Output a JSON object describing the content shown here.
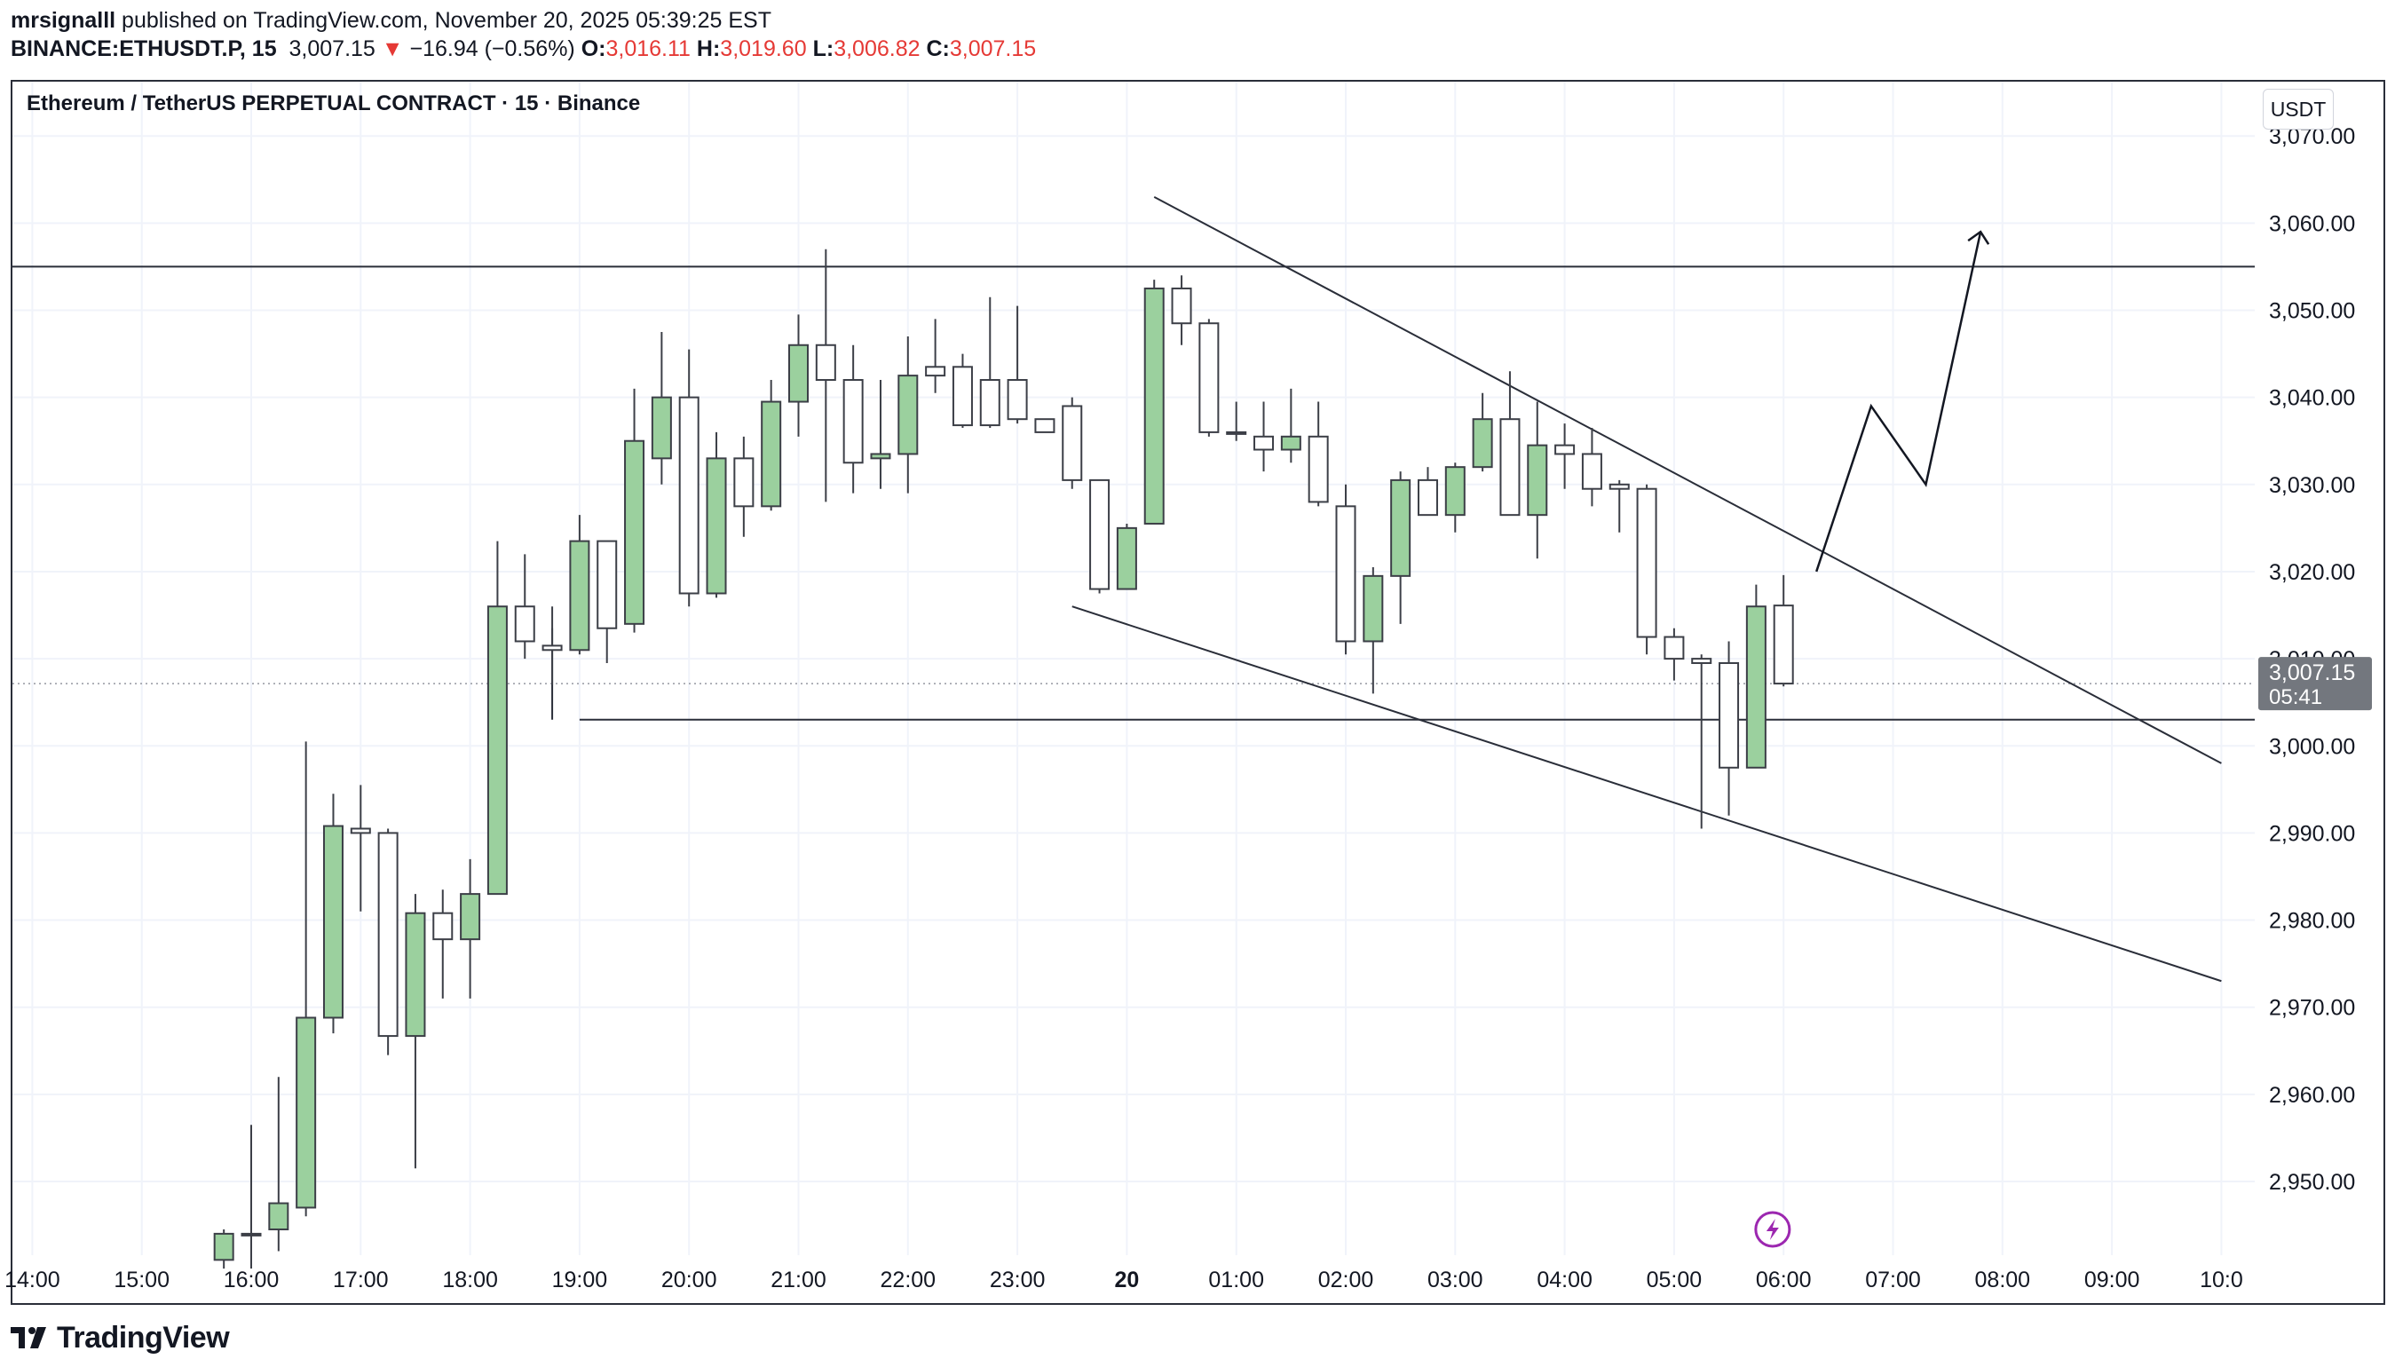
{
  "header": {
    "author": "mrsignalll",
    "published_text": " published on TradingView.com, November 20, 2025 05:39:25 EST",
    "symbol": "BINANCE:ETHUSDT.P, 15",
    "last": "3,007.15",
    "change_arrow": "▼",
    "change": "−16.94 (−0.56%)",
    "o_label": "O:",
    "o_value": "3,016.11",
    "h_label": "H:",
    "h_value": "3,019.60",
    "l_label": "L:",
    "l_value": "3,006.82",
    "c_label": "C:",
    "c_value": "3,007.15"
  },
  "chart_title": "Ethereum / TetherUS PERPETUAL CONTRACT · 15 · Binance",
  "currency_button": "USDT",
  "price_label": {
    "price": "3,007.15",
    "countdown": "05:41"
  },
  "footer": {
    "brand": "TradingView"
  },
  "colors": {
    "up_fill": "#9bd09e",
    "down_fill": "#ffffff",
    "candle_stroke": "#3c3f47",
    "label_bg": "#73777e"
  },
  "chart_data": {
    "type": "candlestick",
    "title": "Ethereum / TetherUS PERPETUAL CONTRACT · 15 · Binance",
    "xlabel": "",
    "ylabel": "USDT",
    "ylim": [
      2942,
      3074
    ],
    "y_ticks": [
      2950,
      2960,
      2970,
      2980,
      2990,
      3000,
      3010,
      3020,
      3030,
      3040,
      3050,
      3060,
      3070
    ],
    "y_tick_labels": [
      "2,950.00",
      "2,960.00",
      "2,970.00",
      "2,980.00",
      "2,990.00",
      "3,000.00",
      "3,010.00",
      "3,020.00",
      "3,030.00",
      "3,040.00",
      "3,050.00",
      "3,060.00",
      "3,070.00"
    ],
    "x_ticks": [
      {
        "t": -2.0,
        "label": "14:00"
      },
      {
        "t": -1.0,
        "label": "15:00"
      },
      {
        "t": 0.0,
        "label": "16:00"
      },
      {
        "t": 1.0,
        "label": "17:00"
      },
      {
        "t": 2.0,
        "label": "18:00"
      },
      {
        "t": 3.0,
        "label": "19:00"
      },
      {
        "t": 4.0,
        "label": "20:00"
      },
      {
        "t": 5.0,
        "label": "21:00"
      },
      {
        "t": 6.0,
        "label": "22:00"
      },
      {
        "t": 7.0,
        "label": "23:00"
      },
      {
        "t": 8.0,
        "label": "20",
        "bold": true
      },
      {
        "t": 9.0,
        "label": "01:00"
      },
      {
        "t": 10.0,
        "label": "02:00"
      },
      {
        "t": 11.0,
        "label": "03:00"
      },
      {
        "t": 12.0,
        "label": "04:00"
      },
      {
        "t": 13.0,
        "label": "05:00"
      },
      {
        "t": 14.0,
        "label": "06:00"
      },
      {
        "t": 15.0,
        "label": "07:00"
      },
      {
        "t": 16.0,
        "label": "08:00"
      },
      {
        "t": 17.0,
        "label": "09:00"
      },
      {
        "t": 18.0,
        "label": "10:0"
      }
    ],
    "candle_interval_hours": 0.25,
    "candles": [
      {
        "t": -0.25,
        "o": 2941.0,
        "h": 2944.5,
        "l": 2940.0,
        "c": 2944.0
      },
      {
        "t": 0.0,
        "o": 2944.0,
        "h": 2956.5,
        "l": 2940.0,
        "c": 2944.0
      },
      {
        "t": 0.25,
        "o": 2944.5,
        "h": 2962.0,
        "l": 2942.0,
        "c": 2947.5
      },
      {
        "t": 0.5,
        "o": 2947.0,
        "h": 3000.5,
        "l": 2946.0,
        "c": 2968.8
      },
      {
        "t": 0.75,
        "o": 2968.8,
        "h": 2994.5,
        "l": 2967.0,
        "c": 2990.8
      },
      {
        "t": 1.0,
        "o": 2990.5,
        "h": 2995.5,
        "l": 2981.0,
        "c": 2990.0
      },
      {
        "t": 1.25,
        "o": 2990.0,
        "h": 2990.5,
        "l": 2964.5,
        "c": 2966.7
      },
      {
        "t": 1.5,
        "o": 2966.7,
        "h": 2983.0,
        "l": 2951.5,
        "c": 2980.8
      },
      {
        "t": 1.75,
        "o": 2980.8,
        "h": 2983.5,
        "l": 2971.0,
        "c": 2977.8
      },
      {
        "t": 2.0,
        "o": 2977.8,
        "h": 2987.0,
        "l": 2971.0,
        "c": 2983.0
      },
      {
        "t": 2.25,
        "o": 2983.0,
        "h": 3023.5,
        "l": 2983.0,
        "c": 3016.0
      },
      {
        "t": 2.5,
        "o": 3016.0,
        "h": 3022.0,
        "l": 3010.0,
        "c": 3012.0
      },
      {
        "t": 2.75,
        "o": 3011.5,
        "h": 3016.0,
        "l": 3007.0,
        "c": 3011.0
      },
      {
        "t": 3.0,
        "o": 3011.0,
        "h": 3026.5,
        "l": 3010.5,
        "c": 3023.5
      },
      {
        "t": 3.25,
        "o": 3023.5,
        "h": 3023.5,
        "l": 3009.5,
        "c": 3013.5
      },
      {
        "t": 3.5,
        "o": 3014.0,
        "h": 3041.0,
        "l": 3013.0,
        "c": 3035.0
      },
      {
        "t": 3.75,
        "o": 3033.0,
        "h": 3047.5,
        "l": 3030.0,
        "c": 3040.0
      },
      {
        "t": 4.0,
        "o": 3040.0,
        "h": 3045.5,
        "l": 3016.0,
        "c": 3017.5
      },
      {
        "t": 4.25,
        "o": 3017.5,
        "h": 3036.0,
        "l": 3017.0,
        "c": 3033.0
      },
      {
        "t": 4.5,
        "o": 3033.0,
        "h": 3035.5,
        "l": 3024.0,
        "c": 3027.5
      },
      {
        "t": 4.75,
        "o": 3027.5,
        "h": 3042.0,
        "l": 3027.0,
        "c": 3039.5
      },
      {
        "t": 5.0,
        "o": 3039.5,
        "h": 3049.5,
        "l": 3035.5,
        "c": 3046.0
      },
      {
        "t": 5.25,
        "o": 3046.0,
        "h": 3057.0,
        "l": 3028.0,
        "c": 3042.0
      },
      {
        "t": 5.5,
        "o": 3042.0,
        "h": 3046.0,
        "l": 3029.0,
        "c": 3032.5
      },
      {
        "t": 5.75,
        "o": 3033.0,
        "h": 3042.0,
        "l": 3029.5,
        "c": 3033.5
      },
      {
        "t": 6.0,
        "o": 3033.5,
        "h": 3047.0,
        "l": 3029.0,
        "c": 3042.5
      },
      {
        "t": 6.25,
        "o": 3043.5,
        "h": 3049.0,
        "l": 3040.5,
        "c": 3042.5
      },
      {
        "t": 6.5,
        "o": 3043.5,
        "h": 3045.0,
        "l": 3036.5,
        "c": 3036.8
      },
      {
        "t": 6.75,
        "o": 3042.0,
        "h": 3051.5,
        "l": 3036.5,
        "c": 3036.8
      },
      {
        "t": 7.0,
        "o": 3042.0,
        "h": 3050.5,
        "l": 3037.0,
        "c": 3037.5
      },
      {
        "t": 7.25,
        "o": 3037.5,
        "h": 3037.5,
        "l": 3036.0,
        "c": 3036.0
      },
      {
        "t": 7.5,
        "o": 3039.0,
        "h": 3040.0,
        "l": 3029.5,
        "c": 3030.5
      },
      {
        "t": 7.75,
        "o": 3030.5,
        "h": 3030.5,
        "l": 3017.5,
        "c": 3018.0
      },
      {
        "t": 8.0,
        "o": 3018.0,
        "h": 3025.5,
        "l": 3018.0,
        "c": 3025.0
      },
      {
        "t": 8.25,
        "o": 3025.5,
        "h": 3053.5,
        "l": 3025.5,
        "c": 3052.5
      },
      {
        "t": 8.5,
        "o": 3052.5,
        "h": 3054.0,
        "l": 3046.0,
        "c": 3048.5
      },
      {
        "t": 8.75,
        "o": 3048.5,
        "h": 3049.0,
        "l": 3035.5,
        "c": 3036.0
      },
      {
        "t": 9.0,
        "o": 3036.0,
        "h": 3039.5,
        "l": 3035.0,
        "c": 3036.0
      },
      {
        "t": 9.25,
        "o": 3035.5,
        "h": 3039.5,
        "l": 3031.5,
        "c": 3034.0
      },
      {
        "t": 9.5,
        "o": 3034.0,
        "h": 3041.0,
        "l": 3032.5,
        "c": 3035.5
      },
      {
        "t": 9.75,
        "o": 3035.5,
        "h": 3039.5,
        "l": 3027.5,
        "c": 3028.0
      },
      {
        "t": 10.0,
        "o": 3027.5,
        "h": 3030.0,
        "l": 3010.5,
        "c": 3012.0
      },
      {
        "t": 10.25,
        "o": 3012.0,
        "h": 3020.5,
        "l": 3006.0,
        "c": 3019.5
      },
      {
        "t": 10.5,
        "o": 3019.5,
        "h": 3031.5,
        "l": 3014.0,
        "c": 3030.5
      },
      {
        "t": 10.75,
        "o": 3030.5,
        "h": 3032.0,
        "l": 3026.5,
        "c": 3026.5
      },
      {
        "t": 11.0,
        "o": 3026.5,
        "h": 3032.5,
        "l": 3024.5,
        "c": 3032.0
      },
      {
        "t": 11.25,
        "o": 3032.0,
        "h": 3040.5,
        "l": 3031.5,
        "c": 3037.5
      },
      {
        "t": 11.5,
        "o": 3037.5,
        "h": 3043.0,
        "l": 3026.5,
        "c": 3026.5
      },
      {
        "t": 11.75,
        "o": 3026.5,
        "h": 3039.5,
        "l": 3021.5,
        "c": 3034.5
      },
      {
        "t": 12.0,
        "o": 3034.5,
        "h": 3037.0,
        "l": 3029.5,
        "c": 3033.5
      },
      {
        "t": 12.25,
        "o": 3033.5,
        "h": 3036.5,
        "l": 3027.5,
        "c": 3029.5
      },
      {
        "t": 12.5,
        "o": 3030.0,
        "h": 3030.5,
        "l": 3024.5,
        "c": 3029.5
      },
      {
        "t": 12.75,
        "o": 3029.5,
        "h": 3030.0,
        "l": 3010.5,
        "c": 3012.5
      },
      {
        "t": 13.0,
        "o": 3012.5,
        "h": 3013.5,
        "l": 3007.5,
        "c": 3010.0
      },
      {
        "t": 13.25,
        "o": 3010.0,
        "h": 3010.5,
        "l": 2990.5,
        "c": 3009.5
      },
      {
        "t": 13.5,
        "o": 3009.5,
        "h": 3012.0,
        "l": 2992.0,
        "c": 2997.5
      },
      {
        "t": 13.75,
        "o": 2997.5,
        "h": 3018.5,
        "l": 2997.5,
        "c": 3016.0
      },
      {
        "t": 14.0,
        "o": 3016.11,
        "h": 3019.6,
        "l": 3006.82,
        "c": 3007.15
      }
    ],
    "annotations": {
      "resistance_level": 3055.0,
      "support_level": 3003.0,
      "current_price": 3007.15,
      "upper_trendline": [
        {
          "t": 8.25,
          "p": 3063.0
        },
        {
          "t": 18.0,
          "p": 2998.0
        }
      ],
      "lower_trendline": [
        {
          "t": 7.5,
          "p": 3016.0
        },
        {
          "t": 18.0,
          "p": 2973.0
        }
      ],
      "projection_path": [
        {
          "t": 14.3,
          "p": 3020.0
        },
        {
          "t": 14.8,
          "p": 3039.0
        },
        {
          "t": 15.3,
          "p": 3030.0
        },
        {
          "t": 15.8,
          "p": 3059.0
        }
      ]
    }
  }
}
